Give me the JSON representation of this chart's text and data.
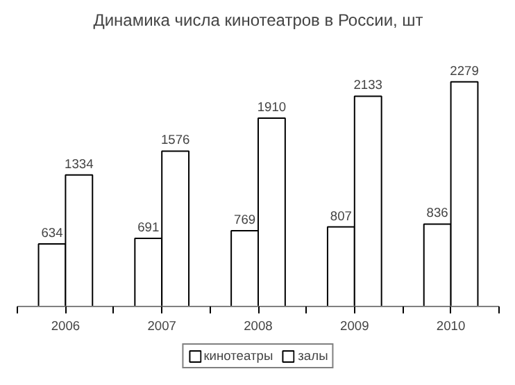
{
  "chart_data": {
    "type": "bar",
    "title": "Динамика числа кинотеатров в России, шт",
    "categories": [
      "2006",
      "2007",
      "2008",
      "2009",
      "2010"
    ],
    "series": [
      {
        "name": "кинотеатры",
        "color": "#ffffff",
        "values": [
          634,
          691,
          769,
          807,
          836
        ]
      },
      {
        "name": "залы",
        "color": "#ffffff",
        "values": [
          1334,
          1576,
          1910,
          2133,
          2279
        ]
      }
    ],
    "data_labels": true,
    "legend": "bottom",
    "grid": false
  }
}
